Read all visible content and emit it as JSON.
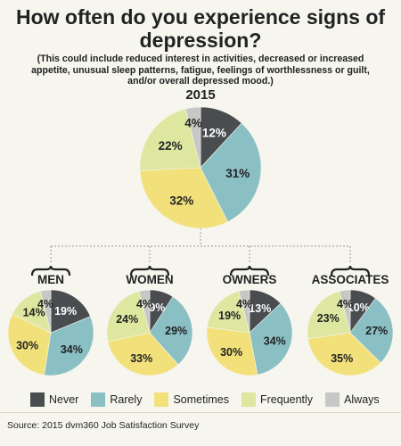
{
  "title": "How often do you experience signs of depression?",
  "subtitle": "(This could include reduced interest in activities, decreased or increased appetite, unusual sleep patterns, fatigue, feelings of worthlessness or guilt, and/or overall depressed mood.)",
  "source": "Source: 2015 dvm360 Job Satisfaction Survey",
  "colors": {
    "Never": "#4a4d50",
    "Rarely": "#8abfc4",
    "Sometimes": "#f2e17b",
    "Frequently": "#dde7a0",
    "Always": "#c7c8c5"
  },
  "chart_data": [
    {
      "type": "pie",
      "title": "2015",
      "categories": [
        "Never",
        "Rarely",
        "Sometimes",
        "Frequently",
        "Always"
      ],
      "values": [
        12,
        31,
        32,
        22,
        4
      ]
    },
    {
      "type": "pie",
      "title": "MEN",
      "categories": [
        "Never",
        "Rarely",
        "Sometimes",
        "Frequently",
        "Always"
      ],
      "values": [
        19,
        34,
        30,
        14,
        4
      ]
    },
    {
      "type": "pie",
      "title": "WOMEN",
      "categories": [
        "Never",
        "Rarely",
        "Sometimes",
        "Frequently",
        "Always"
      ],
      "values": [
        9,
        29,
        33,
        24,
        4
      ]
    },
    {
      "type": "pie",
      "title": "OWNERS",
      "categories": [
        "Never",
        "Rarely",
        "Sometimes",
        "Frequently",
        "Always"
      ],
      "values": [
        13,
        34,
        30,
        19,
        4
      ]
    },
    {
      "type": "pie",
      "title": "ASSOCIATES",
      "categories": [
        "Never",
        "Rarely",
        "Sometimes",
        "Frequently",
        "Always"
      ],
      "values": [
        10,
        27,
        35,
        23,
        4
      ]
    }
  ],
  "legend": [
    "Never",
    "Rarely",
    "Sometimes",
    "Frequently",
    "Always"
  ]
}
